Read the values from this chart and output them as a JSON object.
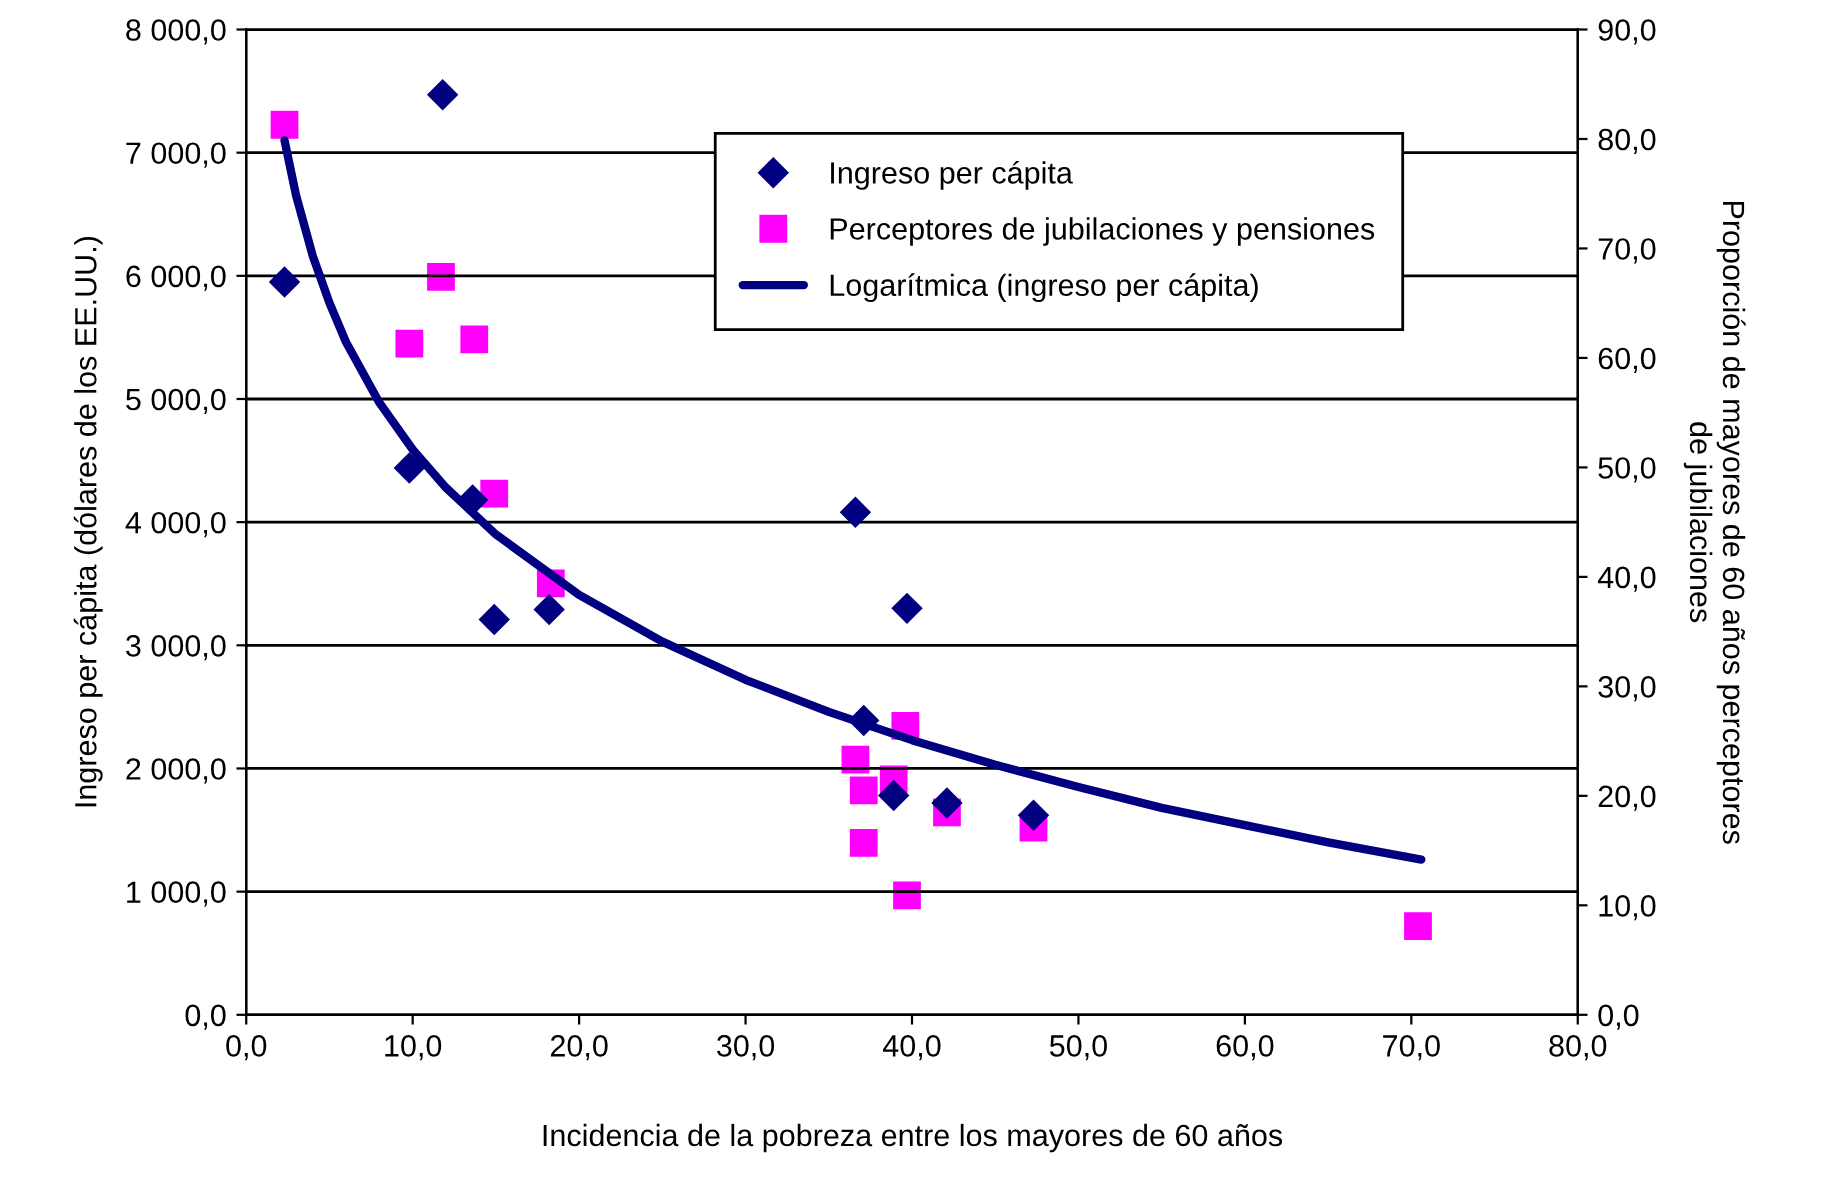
{
  "chart_data": {
    "type": "scatter",
    "xlabel": "Incidencia de la pobreza entre los mayores de 60 años",
    "ylabel": "Ingreso per cápita (dólares de los EE.UU.)",
    "y2label": "Proporción de mayores de 60 años perceptores\nde jubilaciones",
    "xlim": [
      0,
      80
    ],
    "xticks": [
      {
        "value": 0,
        "label": "0,0"
      },
      {
        "value": 10,
        "label": "10,0"
      },
      {
        "value": 20,
        "label": "20,0"
      },
      {
        "value": 30,
        "label": "30,0"
      },
      {
        "value": 40,
        "label": "40,0"
      },
      {
        "value": 50,
        "label": "50,0"
      },
      {
        "value": 60,
        "label": "60,0"
      },
      {
        "value": 70,
        "label": "70,0"
      },
      {
        "value": 80,
        "label": "80,0"
      }
    ],
    "ylim": [
      0,
      8000
    ],
    "yticks": [
      {
        "value": 0,
        "label": "0,0"
      },
      {
        "value": 1000,
        "label": "1 000,0"
      },
      {
        "value": 2000,
        "label": "2 000,0"
      },
      {
        "value": 3000,
        "label": "3 000,0"
      },
      {
        "value": 4000,
        "label": "4 000,0"
      },
      {
        "value": 5000,
        "label": "5 000,0"
      },
      {
        "value": 6000,
        "label": "6 000,0"
      },
      {
        "value": 7000,
        "label": "7 000,0"
      },
      {
        "value": 8000,
        "label": "8 000,0"
      }
    ],
    "y2lim": [
      0,
      90
    ],
    "y2ticks": [
      {
        "value": 0,
        "label": "0,0"
      },
      {
        "value": 10,
        "label": "10,0"
      },
      {
        "value": 20,
        "label": "20,0"
      },
      {
        "value": 30,
        "label": "30,0"
      },
      {
        "value": 40,
        "label": "40,0"
      },
      {
        "value": 50,
        "label": "50,0"
      },
      {
        "value": 60,
        "label": "60,0"
      },
      {
        "value": 70,
        "label": "70,0"
      },
      {
        "value": 80,
        "label": "80,0"
      },
      {
        "value": 90,
        "label": "90,0"
      }
    ],
    "grid": "y",
    "legend": "top right",
    "series": [
      {
        "name": "Ingreso per cápita",
        "marker": "diamond",
        "color": "#000080",
        "x": [
          2.3,
          11.8,
          9.8,
          13.6,
          14.9,
          18.2,
          36.6,
          39.7,
          37.1,
          38.9,
          42.1,
          47.3
        ],
        "values": [
          5950,
          7470,
          4440,
          4180,
          3210,
          3290,
          4080,
          3300,
          2390,
          1780,
          1720,
          1620
        ]
      },
      {
        "name": "Perceptores de jubilaciones y pensiones",
        "marker": "square",
        "axis": "y2",
        "color": "#ff00ff",
        "x": [
          2.3,
          11.7,
          9.8,
          13.7,
          14.9,
          18.3,
          39.6,
          36.6,
          37.1,
          38.9,
          42.1,
          47.3,
          37.1,
          39.7,
          70.4
        ],
        "values": [
          81.3,
          67.4,
          61.3,
          61.7,
          47.6,
          39.4,
          26.4,
          23.3,
          20.5,
          21.5,
          18.5,
          17.1,
          15.7,
          10.9,
          8.1
        ]
      },
      {
        "name": "Logarítmica (ingreso per cápita)",
        "type": "line",
        "marker": "none",
        "line_style": "solid",
        "color": "#000080",
        "x": [
          2.3,
          3,
          4,
          5,
          6,
          8,
          10,
          12,
          15,
          20,
          25,
          30,
          35,
          40,
          45,
          50,
          55,
          60,
          65,
          70.6
        ],
        "values": [
          7100,
          6650,
          6160,
          5780,
          5460,
          4970,
          4590,
          4280,
          3900,
          3410,
          3030,
          2720,
          2460,
          2230,
          2030,
          1850,
          1680,
          1540,
          1400,
          1260
        ]
      }
    ]
  }
}
